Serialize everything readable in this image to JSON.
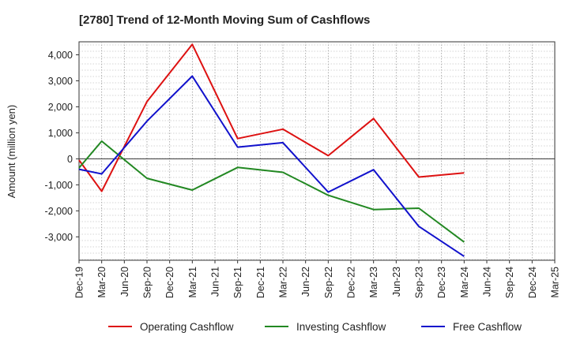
{
  "chart_data": {
    "type": "line",
    "title": "[2780]  Trend of 12-Month Moving Sum of Cashflows",
    "xlabel": "",
    "ylabel": "Amount (million yen)",
    "categories": [
      "Dec-19",
      "Mar-20",
      "Jun-20",
      "Sep-20",
      "Dec-20",
      "Mar-21",
      "Jun-21",
      "Sep-21",
      "Dec-21",
      "Mar-22",
      "Jun-22",
      "Sep-22",
      "Dec-22",
      "Mar-23",
      "Jun-23",
      "Sep-23",
      "Dec-23",
      "Mar-24",
      "Jun-24",
      "Sep-24",
      "Dec-24",
      "Mar-25"
    ],
    "ylim": [
      -3900,
      4500
    ],
    "yticks": [
      -3000,
      -2000,
      -1000,
      0,
      1000,
      2000,
      3000,
      4000
    ],
    "ytick_labels": [
      "-3,000",
      "-2,000",
      "-1,000",
      "0",
      "1,000",
      "2,000",
      "3,000",
      "4,000"
    ],
    "grid": true,
    "legend_position": "bottom",
    "series": [
      {
        "name": "Operating Cashflow",
        "color": "#dd1111",
        "values": [
          -50,
          -1250,
          null,
          2200,
          null,
          4400,
          null,
          780,
          null,
          1140,
          null,
          120,
          null,
          1550,
          null,
          -700,
          null,
          -540,
          null,
          null,
          null,
          null
        ]
      },
      {
        "name": "Investing Cashflow",
        "color": "#228822",
        "values": [
          -350,
          680,
          null,
          -750,
          null,
          -1200,
          null,
          -330,
          null,
          -520,
          null,
          -1400,
          null,
          -1950,
          null,
          -1900,
          null,
          -3200,
          null,
          null,
          null,
          null
        ]
      },
      {
        "name": "Free Cashflow",
        "color": "#1111cc",
        "values": [
          -400,
          -580,
          null,
          1450,
          null,
          3180,
          null,
          450,
          null,
          620,
          null,
          -1280,
          null,
          -420,
          null,
          -2600,
          null,
          -3750,
          null,
          null,
          null,
          null
        ]
      }
    ]
  }
}
